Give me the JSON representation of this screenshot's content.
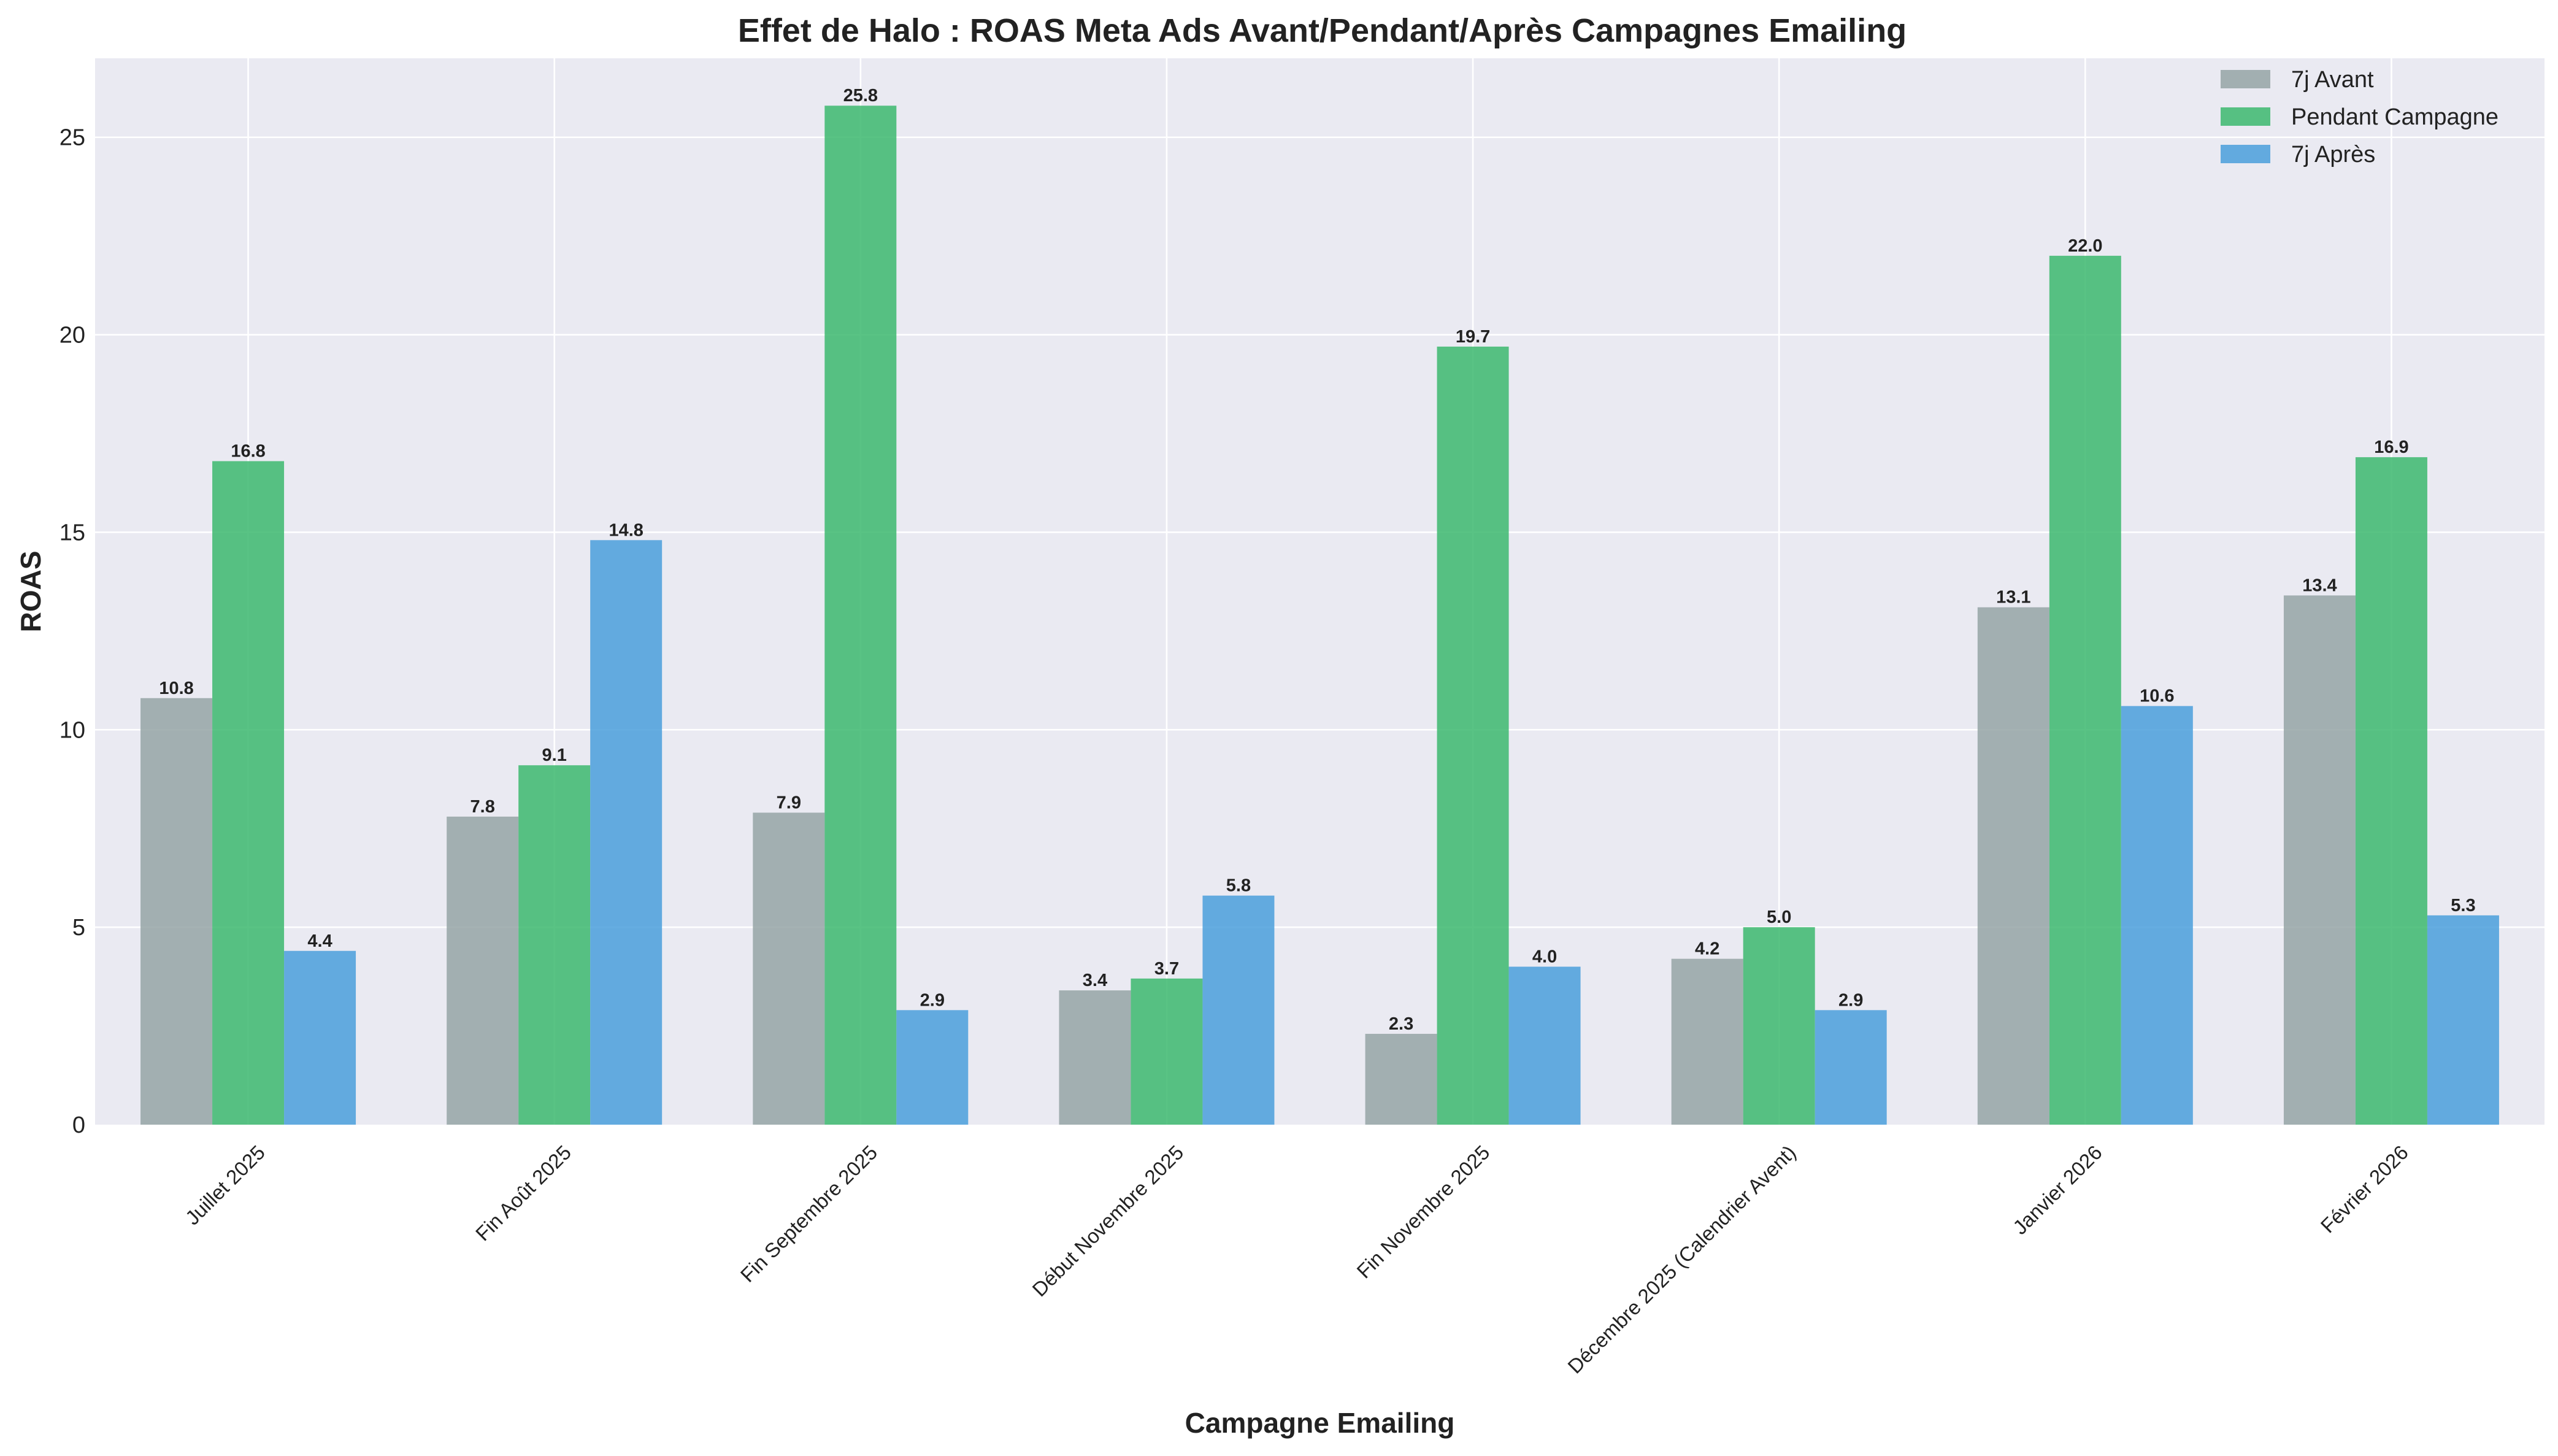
{
  "chart_data": {
    "type": "bar",
    "title": "Effet de Halo : ROAS Meta Ads Avant/Pendant/Après Campagnes Emailing",
    "xlabel": "Campagne Emailing",
    "ylabel": "ROAS",
    "ylim": [
      0,
      27
    ],
    "yticks": [
      0,
      5,
      10,
      15,
      20,
      25
    ],
    "grid": true,
    "legend_position": "top-right",
    "categories": [
      "Juillet 2025",
      "Fin Août 2025",
      "Fin Septembre 2025",
      "Début Novembre 2025",
      "Fin Novembre 2025",
      "Décembre 2025 (Calendrier Avent)",
      "Janvier 2026",
      "Février 2026"
    ],
    "series": [
      {
        "name": "7j Avant",
        "color": "#95a5a6",
        "values": [
          10.8,
          7.8,
          7.9,
          3.4,
          2.3,
          4.2,
          13.1,
          13.4
        ]
      },
      {
        "name": "Pendant Campagne",
        "color": "#3cb86e",
        "values": [
          16.8,
          9.1,
          25.8,
          3.7,
          19.7,
          5.0,
          22.0,
          16.9
        ]
      },
      {
        "name": "7j Après",
        "color": "#4a9fdc",
        "values": [
          4.4,
          14.8,
          2.9,
          5.8,
          4.0,
          2.9,
          10.6,
          5.3
        ]
      }
    ],
    "colors": {
      "background": "#eaeaf2",
      "grid": "#ffffff"
    }
  }
}
